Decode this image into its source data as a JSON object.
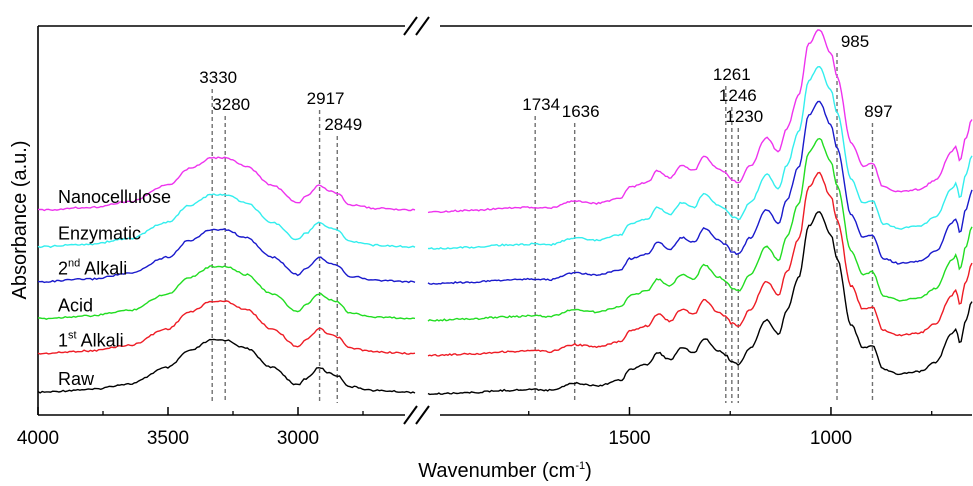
{
  "chart_data": {
    "type": "line",
    "xlabel": "Wavenumber (cm",
    "xlabel_sup": "-1",
    "xlabel_end": ")",
    "ylabel": "Absorbance (a.u.)",
    "x_axis_reversed": true,
    "x_axis_break": true,
    "x_segments": [
      {
        "xlim": [
          4000,
          2550
        ]
      },
      {
        "xlim": [
          2000,
          650
        ]
      }
    ],
    "x_tick_labels": [
      {
        "label": "4000",
        "value": 4000
      },
      {
        "label": "3500",
        "value": 3500
      },
      {
        "label": "3000",
        "value": 3000
      },
      {
        "label": "1500",
        "value": 1500
      },
      {
        "label": "1000",
        "value": 1000
      }
    ],
    "y_ticks_shown": false,
    "peak_markers": [
      {
        "label": "3330",
        "x": 3330
      },
      {
        "label": "3280",
        "x": 3280
      },
      {
        "label": "2917",
        "x": 2917
      },
      {
        "label": "2849",
        "x": 2849
      },
      {
        "label": "1734",
        "x": 1734
      },
      {
        "label": "1636",
        "x": 1636
      },
      {
        "label": "1261",
        "x": 1261
      },
      {
        "label": "1246",
        "x": 1246
      },
      {
        "label": "1230",
        "x": 1230
      },
      {
        "label": "985",
        "x": 985
      },
      {
        "label": "897",
        "x": 897
      }
    ],
    "series": [
      {
        "name": "Raw",
        "label_sup": "",
        "label_end": "",
        "color": "#000000",
        "offset": 0.0
      },
      {
        "name": "1",
        "label_sup": "st",
        "label_end": " Alkali",
        "color": "#ee1c25",
        "offset": 0.42
      },
      {
        "name": "Acid",
        "label_sup": "",
        "label_end": "",
        "color": "#22dd22",
        "offset": 0.8
      },
      {
        "name": "2",
        "label_sup": "nd",
        "label_end": " Alkali",
        "color": "#1a1acc",
        "offset": 1.2
      },
      {
        "name": "Enzymatic",
        "label_sup": "",
        "label_end": "",
        "color": "#33eeee",
        "offset": 1.58
      },
      {
        "name": "Nanocellulose",
        "label_sup": "",
        "label_end": "",
        "color": "#ee33ee",
        "offset": 1.98
      }
    ],
    "profile_high": [
      [
        4000,
        0.05
      ],
      [
        3800,
        0.1
      ],
      [
        3650,
        0.2
      ],
      [
        3500,
        0.5
      ],
      [
        3420,
        0.8
      ],
      [
        3330,
        1.0
      ],
      [
        3280,
        1.0
      ],
      [
        3200,
        0.85
      ],
      [
        3100,
        0.5
      ],
      [
        3000,
        0.18
      ],
      [
        2970,
        0.3
      ],
      [
        2917,
        0.5
      ],
      [
        2880,
        0.4
      ],
      [
        2849,
        0.35
      ],
      [
        2800,
        0.15
      ],
      [
        2700,
        0.08
      ],
      [
        2550,
        0.05
      ]
    ],
    "profile_low": [
      [
        2000,
        0.02
      ],
      [
        1900,
        0.05
      ],
      [
        1800,
        0.1
      ],
      [
        1734,
        0.12
      ],
      [
        1700,
        0.1
      ],
      [
        1636,
        0.25
      ],
      [
        1580,
        0.2
      ],
      [
        1520,
        0.32
      ],
      [
        1500,
        0.55
      ],
      [
        1455,
        0.65
      ],
      [
        1430,
        0.9
      ],
      [
        1400,
        0.75
      ],
      [
        1370,
        1.0
      ],
      [
        1340,
        0.9
      ],
      [
        1315,
        1.2
      ],
      [
        1280,
        0.95
      ],
      [
        1261,
        0.85
      ],
      [
        1246,
        0.7
      ],
      [
        1230,
        0.65
      ],
      [
        1200,
        1.0
      ],
      [
        1160,
        1.6
      ],
      [
        1130,
        1.3
      ],
      [
        1110,
        1.8
      ],
      [
        1080,
        2.5
      ],
      [
        1055,
        3.6
      ],
      [
        1030,
        3.9
      ],
      [
        1000,
        3.4
      ],
      [
        985,
        2.9
      ],
      [
        950,
        1.5
      ],
      [
        920,
        1.0
      ],
      [
        897,
        1.05
      ],
      [
        870,
        0.55
      ],
      [
        830,
        0.45
      ],
      [
        780,
        0.5
      ],
      [
        740,
        0.7
      ],
      [
        700,
        1.3
      ],
      [
        690,
        1.4
      ],
      [
        680,
        1.1
      ],
      [
        665,
        1.6
      ],
      [
        650,
        2.0
      ]
    ]
  }
}
